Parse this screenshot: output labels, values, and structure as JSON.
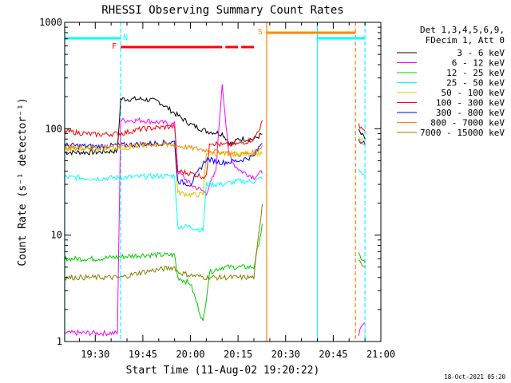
{
  "chart_data": {
    "type": "line",
    "title": "RHESSI Observing Summary Count Rates",
    "xlabel": "Start Time (11-Aug-02 19:20:22)",
    "ylabel": "Count Rate (s⁻¹ detector⁻¹)",
    "yscale": "log",
    "ylim": [
      1,
      1000
    ],
    "xlim": [
      "19:20:22",
      "21:00:00"
    ],
    "x_ticks": [
      "19:30",
      "19:45",
      "20:00",
      "20:15",
      "20:30",
      "20:45",
      "21:00"
    ],
    "y_ticks": [
      "1",
      "10",
      "100",
      "1000"
    ],
    "grid": false,
    "legend_position": "top-right",
    "legend_header": [
      "Det 1,3,4,5,6,9,",
      "FDecim 1, Att 0"
    ],
    "timestamp": "18-Oct-2021 05:20",
    "colors": {
      "3-6": "#000000",
      "6-12": "#ff00ff",
      "12-25": "#00cc00",
      "25-50": "#00ffff",
      "50-100": "#cccc00",
      "100-300": "#ff0000",
      "300-800": "#0000ff",
      "800-7000": "#ff8800",
      "7000-15000": "#808000",
      "flag_N": "#00ffff",
      "flag_F": "#ff0000",
      "flag_S": "#ff8800"
    },
    "flags": [
      {
        "label": "N",
        "color": "#00ffff",
        "segments": [
          [
            "19:20:22",
            "19:38"
          ],
          [
            "20:40",
            "20:55"
          ]
        ]
      },
      {
        "label": "F",
        "color": "#ff0000",
        "segments": [
          [
            "19:38",
            "20:10"
          ],
          [
            "20:11",
            "20:15"
          ],
          [
            "20:16",
            "20:20"
          ]
        ]
      },
      {
        "label": "S",
        "color": "#ff8800",
        "segments": [
          [
            "20:24",
            "20:52"
          ]
        ]
      }
    ],
    "vlines": [
      {
        "x": "19:20:22",
        "color": "#00ffff",
        "style": "solid"
      },
      {
        "x": "19:38",
        "color": "#00ffff",
        "style": "dashed"
      },
      {
        "x": "20:24",
        "color": "#ff8800",
        "style": "solid"
      },
      {
        "x": "20:40",
        "color": "#00ffff",
        "style": "solid"
      },
      {
        "x": "20:52",
        "color": "#ff8800",
        "style": "dashed"
      },
      {
        "x": "20:55",
        "color": "#00ffff",
        "style": "dashed"
      }
    ],
    "series": [
      {
        "name": "3 - 6 keV",
        "color": "#000000",
        "x": [
          "19:20:22",
          "19:30",
          "19:37",
          "19:38",
          "19:45",
          "19:50",
          "19:55",
          "20:00",
          "20:05",
          "20:10",
          "20:13",
          "20:15",
          "20:20",
          "20:23",
          "20:53",
          "20:55"
        ],
        "y": [
          60,
          60,
          62,
          190,
          190,
          180,
          140,
          110,
          95,
          90,
          70,
          80,
          80,
          90,
          95,
          80
        ]
      },
      {
        "name": "6 - 12 keV",
        "color": "#ff00ff",
        "x": [
          "19:20:22",
          "19:37",
          "19:38",
          "19:45",
          "19:50",
          "19:55",
          "19:56",
          "20:00",
          "20:05",
          "20:08",
          "20:10",
          "20:12",
          "20:14",
          "20:16",
          "20:20",
          "20:23",
          "20:53",
          "20:55"
        ],
        "y": [
          1.2,
          1.2,
          120,
          120,
          115,
          110,
          40,
          30,
          25,
          40,
          270,
          60,
          45,
          40,
          35,
          40,
          1.2,
          1.5
        ]
      },
      {
        "name": "12 - 25 keV",
        "color": "#00cc00",
        "x": [
          "19:20:22",
          "19:30",
          "19:45",
          "19:55",
          "19:56",
          "20:00",
          "20:04",
          "20:06",
          "20:10",
          "20:15",
          "20:20",
          "20:23",
          "20:53",
          "20:55"
        ],
        "y": [
          6,
          6,
          6.5,
          6.5,
          4,
          3.5,
          1.5,
          4.5,
          5,
          5,
          5,
          14,
          6.5,
          5.5
        ]
      },
      {
        "name": "25 - 50 keV",
        "color": "#00ffff",
        "x": [
          "19:20:22",
          "19:30",
          "19:40",
          "19:50",
          "19:55",
          "19:56",
          "20:00",
          "20:04",
          "20:05",
          "20:10",
          "20:15",
          "20:20",
          "20:23",
          "20:53",
          "20:55"
        ],
        "y": [
          35,
          34,
          35,
          36,
          36,
          12,
          12,
          11,
          30,
          30,
          32,
          32,
          35,
          40,
          36
        ]
      },
      {
        "name": "50 - 100 keV",
        "color": "#cccc00",
        "x": [
          "19:20:22",
          "19:38",
          "19:45",
          "19:55",
          "19:56",
          "20:00",
          "20:04",
          "20:05",
          "20:10",
          "20:20",
          "20:23",
          "20:53",
          "20:55"
        ],
        "y": [
          65,
          65,
          70,
          72,
          25,
          24,
          24,
          60,
          58,
          58,
          60,
          80,
          75
        ]
      },
      {
        "name": "100 - 300 keV",
        "color": "#ff0000",
        "x": [
          "19:20:22",
          "19:30",
          "19:38",
          "19:45",
          "19:55",
          "19:56",
          "20:00",
          "20:05",
          "20:06",
          "20:10",
          "20:15",
          "20:20",
          "20:23",
          "20:53",
          "20:55"
        ],
        "y": [
          95,
          88,
          90,
          100,
          105,
          40,
          38,
          35,
          75,
          70,
          72,
          80,
          120,
          110,
          95
        ]
      },
      {
        "name": "300 - 800 keV",
        "color": "#0000ff",
        "x": [
          "19:20:22",
          "19:30",
          "19:38",
          "19:45",
          "19:55",
          "19:56",
          "20:00",
          "20:05",
          "20:10",
          "20:15",
          "20:20",
          "20:23",
          "20:53",
          "20:55"
        ],
        "y": [
          70,
          68,
          70,
          72,
          75,
          32,
          30,
          52,
          48,
          50,
          55,
          80,
          80,
          72
        ]
      },
      {
        "name": "800 - 7000 keV",
        "color": "#ff8800",
        "x": [
          "19:20:22",
          "19:30",
          "19:38",
          "19:45",
          "19:50",
          "19:55",
          "20:00",
          "20:05",
          "20:10",
          "20:15",
          "20:20",
          "20:23",
          "20:53",
          "20:55"
        ],
        "y": [
          66,
          67,
          70,
          70,
          72,
          70,
          66,
          63,
          60,
          57,
          60,
          70,
          78,
          70
        ]
      },
      {
        "name": "7000 - 15000 keV",
        "color": "#808000",
        "x": [
          "19:20:22",
          "19:30",
          "19:38",
          "19:45",
          "19:55",
          "19:56",
          "20:00",
          "20:05",
          "20:10",
          "20:15",
          "20:20",
          "20:23",
          "20:53",
          "20:55"
        ],
        "y": [
          4,
          4,
          4,
          4.5,
          5,
          4.5,
          4.2,
          4,
          4,
          4,
          4,
          25,
          6,
          5
        ]
      }
    ]
  }
}
